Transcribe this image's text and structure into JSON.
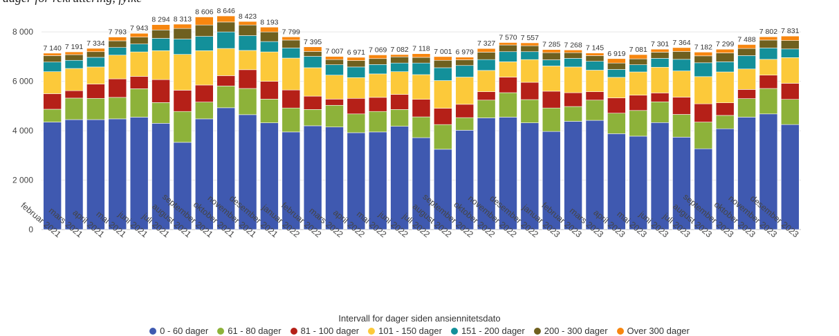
{
  "page": {
    "clipped_title": "dager for rekruttering, fylke"
  },
  "chart_data": {
    "type": "bar",
    "stacked": true,
    "ylim": [
      0,
      8900
    ],
    "yticks": [
      0,
      2000,
      4000,
      6000,
      8000
    ],
    "ytick_labels": [
      "0",
      "2 000",
      "4 000",
      "6 000",
      "8 000"
    ],
    "grid": "horizontal",
    "legend_position": "bottom-center",
    "legend_title": "Intervall for dager siden ansiennitetsdato",
    "categories": [
      "februar 2021",
      "mars 2021",
      "april 2021",
      "mai 2021",
      "juni 2021",
      "juli 2021",
      "august 2021",
      "september 2021",
      "oktober 2021",
      "november 2021",
      "desember 2021",
      "januar 2022",
      "februar 2022",
      "mars 2022",
      "april 2022",
      "mai 2022",
      "juni 2022",
      "juli 2022",
      "august 2022",
      "september 2022",
      "oktober 2022",
      "november 2022",
      "desember 2022",
      "januar 2023",
      "februar 2023",
      "mars 2023",
      "april 2023",
      "mai 2023",
      "juni 2023",
      "juli 2023",
      "august 2023",
      "september 2023",
      "oktober 2023",
      "november 2023",
      "desember 2023"
    ],
    "totals": [
      7140,
      7191,
      7334,
      7793,
      7943,
      8294,
      8313,
      8606,
      8646,
      8423,
      8193,
      7799,
      7395,
      7007,
      6971,
      7069,
      7082,
      7118,
      7001,
      6979,
      7327,
      7570,
      7557,
      7285,
      7268,
      7145,
      6919,
      7081,
      7301,
      7364,
      7182,
      7299,
      7488,
      7802,
      7831
    ],
    "total_labels": [
      "7 140",
      "7 191",
      "7 334",
      "7 793",
      "7 943",
      "8 294",
      "8 313",
      "8 606",
      "8 646",
      "8 423",
      "8 193",
      "7 799",
      "7 395",
      "7 007",
      "6 971",
      "7 069",
      "7 082",
      "7 118",
      "7 001",
      "6 979",
      "7 327",
      "7 570",
      "7 557",
      "7 285",
      "7 268",
      "7 145",
      "6 919",
      "7 081",
      "7 301",
      "7 364",
      "7 182",
      "7 299",
      "7 488",
      "7 802",
      "7 831"
    ],
    "series": [
      {
        "name": "0 - 60 dager",
        "color": "#3f59b0",
        "values": [
          4350,
          4450,
          4450,
          4480,
          4550,
          4300,
          3530,
          4480,
          4930,
          4650,
          4320,
          3950,
          4200,
          4150,
          3920,
          3950,
          4180,
          3720,
          3250,
          4020,
          4520,
          4550,
          4320,
          3970,
          4380,
          4420,
          3880,
          3780,
          4330,
          3740,
          3270,
          4080,
          4550,
          4680,
          4250
        ]
      },
      {
        "name": "61 - 80 dager",
        "color": "#8db23a",
        "values": [
          520,
          870,
          860,
          870,
          1150,
          840,
          1250,
          680,
          880,
          1060,
          960,
          970,
          660,
          880,
          760,
          830,
          680,
          840,
          1000,
          510,
          720,
          990,
          940,
          950,
          600,
          820,
          830,
          1040,
          840,
          920,
          1080,
          540,
          750,
          1030,
          1020
        ]
      },
      {
        "name": "81 - 100 dager",
        "color": "#b52018",
        "values": [
          630,
          300,
          580,
          750,
          500,
          930,
          860,
          690,
          420,
          760,
          720,
          730,
          540,
          250,
          630,
          570,
          610,
          710,
          660,
          540,
          340,
          630,
          700,
          680,
          560,
          340,
          620,
          620,
          360,
          700,
          740,
          510,
          370,
          540,
          650
        ]
      },
      {
        "name": "101 - 150 dager",
        "color": "#fcc93a",
        "values": [
          890,
          900,
          690,
          960,
          990,
          1170,
          1450,
          1390,
          1100,
          780,
          1190,
          1290,
          1150,
          970,
          840,
          950,
          920,
          1000,
          1120,
          1100,
          860,
          620,
          920,
          1020,
          1040,
          870,
          830,
          940,
          1040,
          1060,
          1100,
          1250,
          830,
          640,
          1040
        ]
      },
      {
        "name": "151 - 200 dager",
        "color": "#13909a",
        "values": [
          390,
          330,
          390,
          310,
          320,
          500,
          620,
          580,
          670,
          600,
          420,
          410,
          460,
          420,
          430,
          380,
          350,
          470,
          520,
          470,
          440,
          410,
          320,
          250,
          350,
          360,
          320,
          290,
          360,
          470,
          560,
          410,
          540,
          460,
          350
        ]
      },
      {
        "name": "200 - 300 dager",
        "color": "#6f601f",
        "values": [
          260,
          230,
          230,
          270,
          280,
          340,
          430,
          460,
          400,
          430,
          390,
          320,
          200,
          210,
          260,
          240,
          250,
          230,
          300,
          230,
          300,
          270,
          240,
          290,
          230,
          230,
          260,
          240,
          250,
          320,
          280,
          360,
          290,
          320,
          340
        ]
      },
      {
        "name": "Over 300 dager",
        "color": "#f7860f",
        "values": [
          100,
          111,
          134,
          153,
          153,
          214,
          173,
          326,
          246,
          143,
          193,
          129,
          185,
          127,
          131,
          149,
          92,
          148,
          151,
          109,
          147,
          100,
          117,
          125,
          108,
          105,
          179,
          171,
          121,
          154,
          152,
          149,
          158,
          132,
          181
        ]
      }
    ]
  }
}
